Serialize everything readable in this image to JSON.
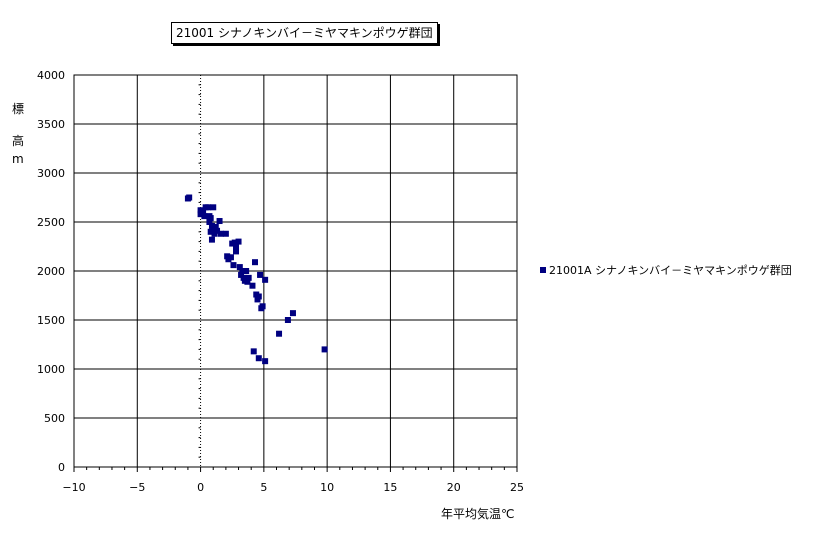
{
  "chart_data": {
    "type": "scatter",
    "title": "21001 シナノキンバイ－ミヤマキンポウゲ群団",
    "xlabel": "年平均気温℃",
    "ylabel": [
      "標",
      "高",
      "m"
    ],
    "xlim": [
      -10,
      25
    ],
    "ylim": [
      0,
      4000
    ],
    "x_ticks": [
      -10,
      -5,
      0,
      5,
      10,
      15,
      20,
      25
    ],
    "y_ticks": [
      0,
      500,
      1000,
      1500,
      2000,
      2500,
      3000,
      3500,
      4000
    ],
    "grid": true,
    "legend_position": "right",
    "marker_color": "#000080",
    "series": [
      {
        "name": "21001A シナノキンバイ－ミヤマキンポウゲ群団",
        "points": [
          [
            -1.0,
            2740
          ],
          [
            -0.9,
            2750
          ],
          [
            0.0,
            2620
          ],
          [
            0.0,
            2580
          ],
          [
            0.2,
            2600
          ],
          [
            0.3,
            2560
          ],
          [
            0.4,
            2650
          ],
          [
            0.6,
            2650
          ],
          [
            0.7,
            2560
          ],
          [
            0.8,
            2540
          ],
          [
            0.7,
            2500
          ],
          [
            0.9,
            2460
          ],
          [
            1.0,
            2420
          ],
          [
            0.8,
            2400
          ],
          [
            1.1,
            2380
          ],
          [
            0.9,
            2320
          ],
          [
            1.0,
            2650
          ],
          [
            1.2,
            2450
          ],
          [
            1.3,
            2410
          ],
          [
            1.5,
            2510
          ],
          [
            1.6,
            2380
          ],
          [
            2.0,
            2380
          ],
          [
            2.1,
            2150
          ],
          [
            2.2,
            2120
          ],
          [
            2.4,
            2140
          ],
          [
            2.5,
            2280
          ],
          [
            2.7,
            2290
          ],
          [
            2.8,
            2240
          ],
          [
            2.8,
            2200
          ],
          [
            3.0,
            2300
          ],
          [
            2.6,
            2060
          ],
          [
            3.1,
            2040
          ],
          [
            3.3,
            2000
          ],
          [
            3.2,
            1960
          ],
          [
            3.4,
            1930
          ],
          [
            3.5,
            1900
          ],
          [
            3.6,
            2000
          ],
          [
            3.8,
            1930
          ],
          [
            3.7,
            1890
          ],
          [
            4.1,
            1850
          ],
          [
            4.3,
            2090
          ],
          [
            4.4,
            1760
          ],
          [
            4.5,
            1710
          ],
          [
            4.6,
            1740
          ],
          [
            4.7,
            1960
          ],
          [
            4.8,
            1620
          ],
          [
            4.9,
            1640
          ],
          [
            5.1,
            1910
          ],
          [
            6.2,
            1360
          ],
          [
            6.9,
            1500
          ],
          [
            7.3,
            1570
          ],
          [
            4.2,
            1180
          ],
          [
            4.6,
            1110
          ],
          [
            5.1,
            1080
          ],
          [
            9.8,
            1200
          ]
        ]
      }
    ]
  }
}
